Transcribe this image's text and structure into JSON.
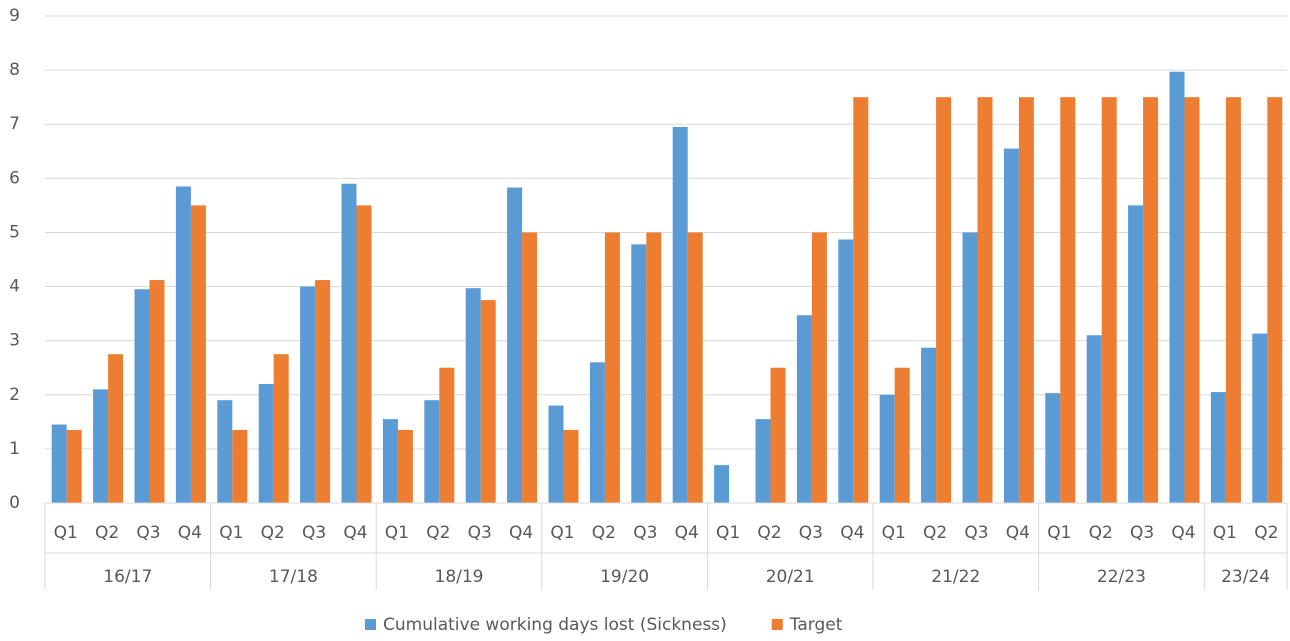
{
  "chart_data": {
    "type": "bar",
    "groups": [
      {
        "name": "16/17",
        "categories": [
          "Q1",
          "Q2",
          "Q3",
          "Q4"
        ]
      },
      {
        "name": "17/18",
        "categories": [
          "Q1",
          "Q2",
          "Q3",
          "Q4"
        ]
      },
      {
        "name": "18/19",
        "categories": [
          "Q1",
          "Q2",
          "Q3",
          "Q4"
        ]
      },
      {
        "name": "19/20",
        "categories": [
          "Q1",
          "Q2",
          "Q3",
          "Q4"
        ]
      },
      {
        "name": "20/21",
        "categories": [
          "Q1",
          "Q2",
          "Q3",
          "Q4"
        ]
      },
      {
        "name": "21/22",
        "categories": [
          "Q1",
          "Q2",
          "Q3",
          "Q4"
        ]
      },
      {
        "name": "22/23",
        "categories": [
          "Q1",
          "Q2",
          "Q3",
          "Q4"
        ]
      },
      {
        "name": "23/24",
        "categories": [
          "Q1",
          "Q2"
        ]
      }
    ],
    "series": [
      {
        "name": "Cumulative working days lost (Sickness)",
        "color": "#5b9bd5",
        "values": [
          1.45,
          2.1,
          3.95,
          5.85,
          1.9,
          2.2,
          4.0,
          5.9,
          1.55,
          1.9,
          3.97,
          5.83,
          1.8,
          2.6,
          4.78,
          6.95,
          0.7,
          1.55,
          3.47,
          4.87,
          2.0,
          2.87,
          5.0,
          6.55,
          2.03,
          3.1,
          5.5,
          7.97,
          2.05,
          3.13
        ]
      },
      {
        "name": "Target",
        "color": "#ed7d31",
        "values": [
          1.35,
          2.75,
          4.12,
          5.5,
          1.35,
          2.75,
          4.12,
          5.5,
          1.35,
          2.5,
          3.75,
          5.0,
          1.35,
          5.0,
          5.0,
          5.0,
          null,
          2.5,
          5.0,
          7.5,
          2.5,
          7.5,
          7.5,
          7.5,
          7.5,
          7.5,
          7.5,
          7.5,
          7.5,
          7.5
        ]
      }
    ],
    "ylim": [
      0,
      9
    ],
    "yticks": [
      0,
      1,
      2,
      3,
      4,
      5,
      6,
      7,
      8,
      9
    ],
    "grid": true,
    "legend": "bottom"
  }
}
